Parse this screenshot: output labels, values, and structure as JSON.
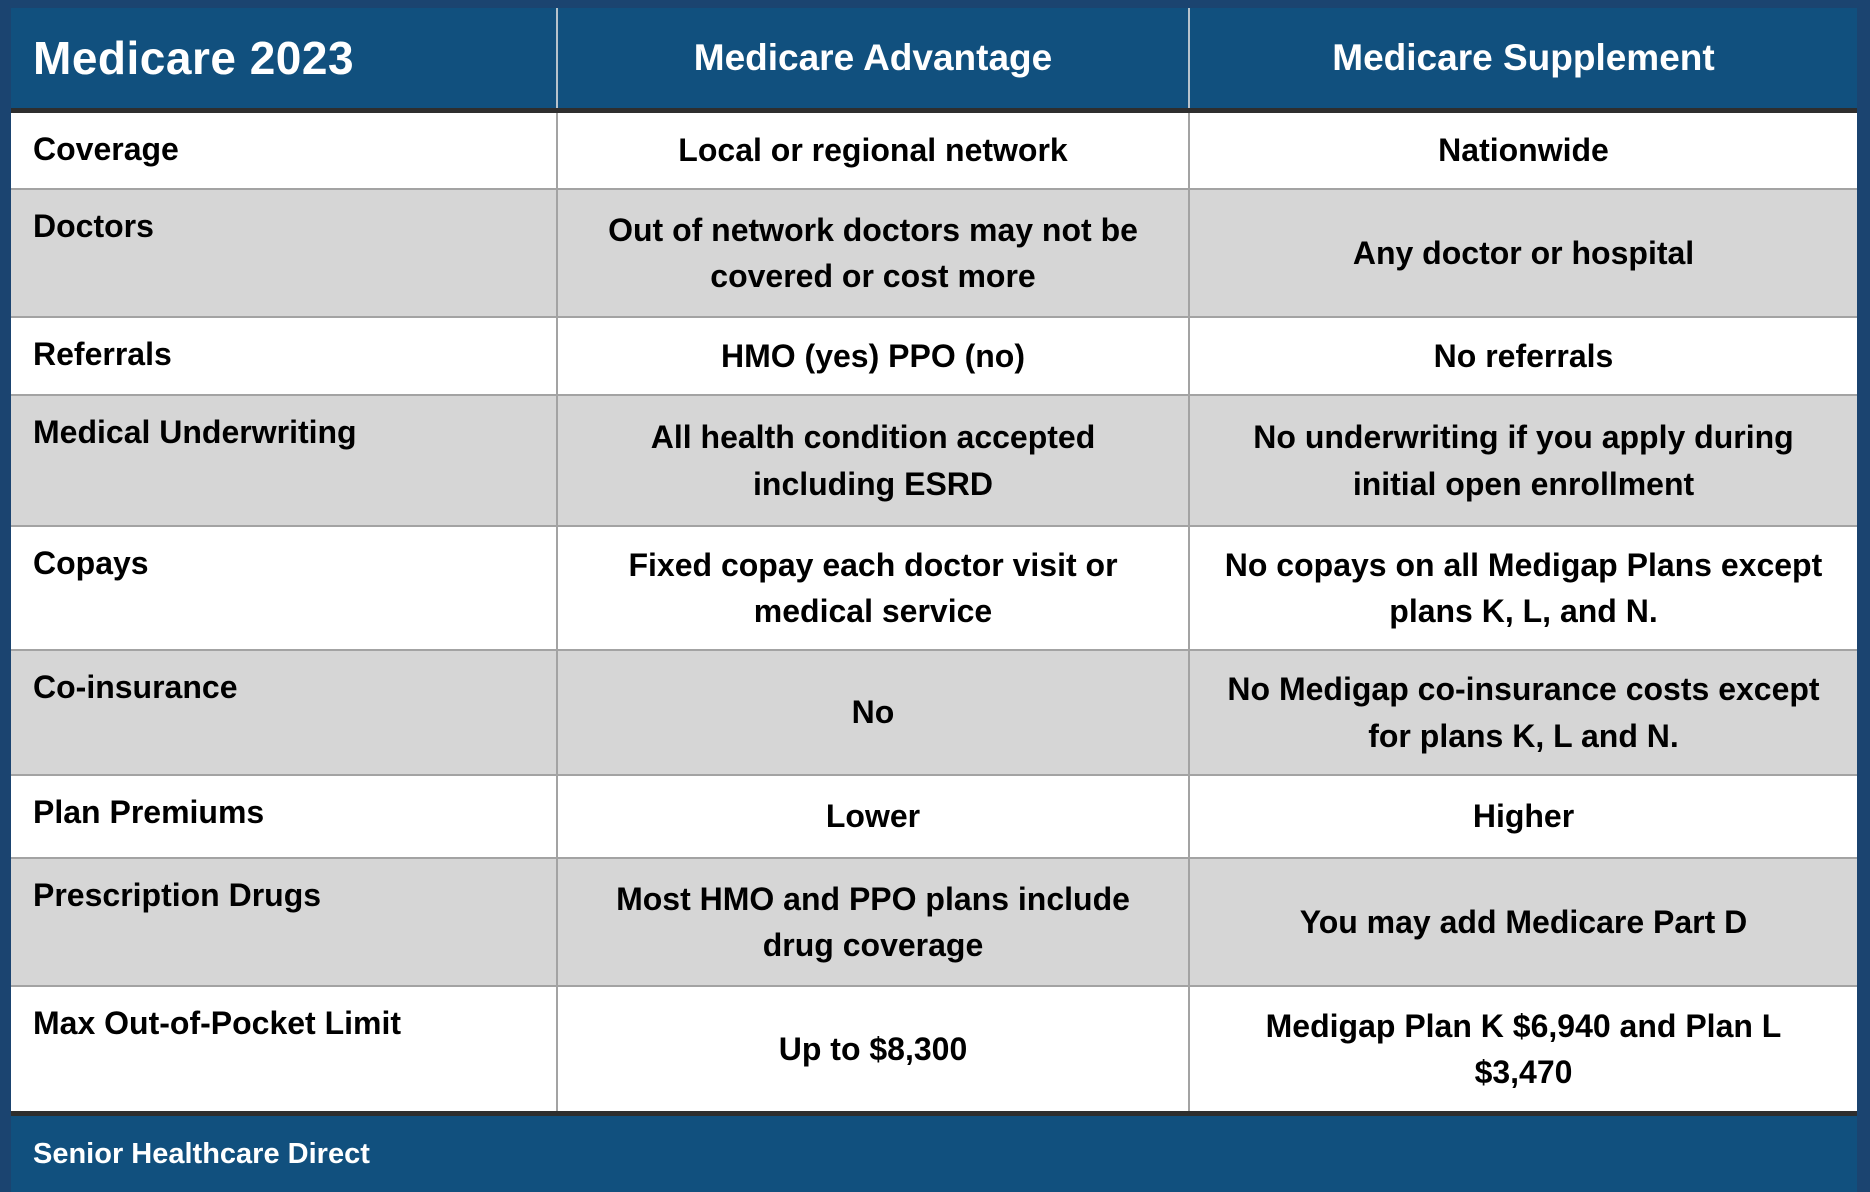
{
  "table": {
    "title": "Medicare 2023",
    "columns": [
      "Medicare Advantage",
      "Medicare Supplement"
    ],
    "rows": [
      {
        "label": "Coverage",
        "advantage": "Local or regional network",
        "supplement": "Nationwide"
      },
      {
        "label": "Doctors",
        "advantage": "Out of network doctors may not be covered or cost more",
        "supplement": "Any doctor or hospital"
      },
      {
        "label": "Referrals",
        "advantage": "HMO (yes) PPO (no)",
        "supplement": "No referrals"
      },
      {
        "label": "Medical Underwriting",
        "advantage": "All health condition accepted including ESRD",
        "supplement": "No underwriting if you apply during initial open enrollment"
      },
      {
        "label": "Copays",
        "advantage": "Fixed copay each doctor visit or medical service",
        "supplement": "No copays on all Medigap Plans except plans K, L, and N."
      },
      {
        "label": "Co-insurance",
        "advantage": "No",
        "supplement": "No Medigap co-insurance costs except for plans K, L and N."
      },
      {
        "label": "Plan Premiums",
        "advantage": "Lower",
        "supplement": "Higher"
      },
      {
        "label": "Prescription Drugs",
        "advantage": "Most HMO and PPO plans include drug coverage",
        "supplement": "You may add Medicare Part D"
      },
      {
        "label": "Max Out-of-Pocket Limit",
        "advantage": "Up to $8,300",
        "supplement": "Medigap Plan K $6,940 and Plan L $3,470"
      }
    ],
    "footer": "Senior Healthcare Direct"
  },
  "colors": {
    "header_blue": "#11507e",
    "frame_navy": "#1b4470",
    "alt_row_gray": "#d6d6d6",
    "grid_line": "#a3a3a3",
    "heavy_line": "#2e2e2e",
    "header_text": "#ffffff",
    "body_text": "#000000"
  }
}
